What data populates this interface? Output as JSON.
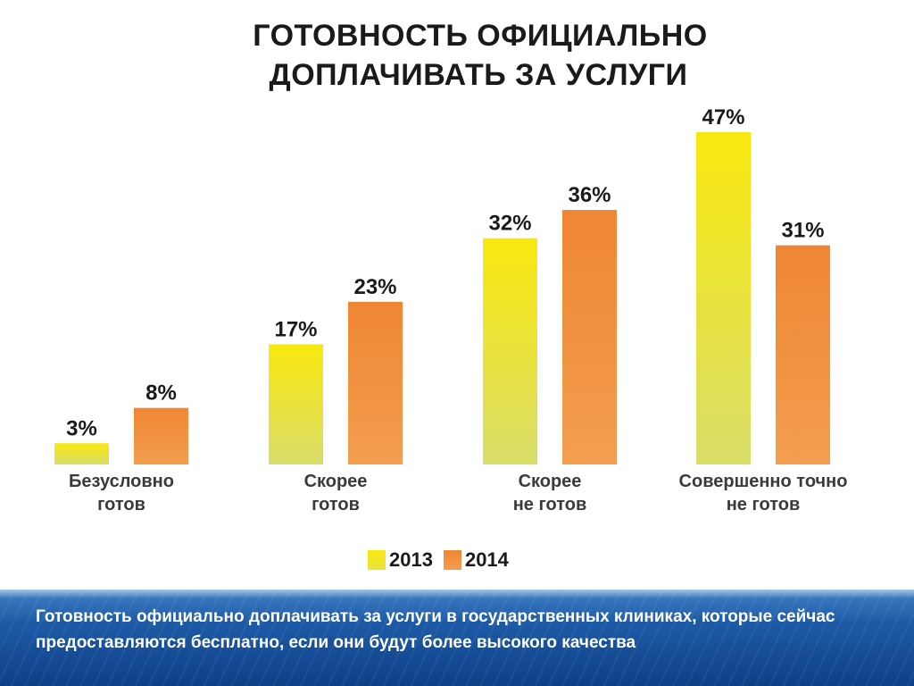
{
  "chart_data": {
    "type": "bar",
    "title_lines": [
      "ГОТОВНОСТЬ ОФИЦИАЛЬНО",
      "ДОПЛАЧИВАТЬ ЗА УСЛУГИ"
    ],
    "categories": [
      [
        "Безусловно",
        "готов"
      ],
      [
        "Скорее",
        "готов"
      ],
      [
        "Скорее",
        "не готов"
      ],
      [
        "Совершенно точно",
        "не готов"
      ]
    ],
    "series": [
      {
        "name": "2013",
        "values": [
          3,
          17,
          32,
          47
        ],
        "labels": [
          "3%",
          "17%",
          "32%",
          "47%"
        ],
        "color": "#f7e11a"
      },
      {
        "name": "2014",
        "values": [
          8,
          23,
          36,
          31
        ],
        "labels": [
          "8%",
          "23%",
          "36%",
          "31%"
        ],
        "color": "#f0893a"
      }
    ],
    "ylim": [
      0,
      47
    ],
    "grid": false,
    "legend_position": "bottom-center"
  },
  "colors": {
    "bar_2013_top": "#f7e11a",
    "bar_2013_bottom": "#d7dc5e",
    "bar_2014_top": "#f0893a",
    "bar_2014_bottom": "#f39c4c",
    "caption_band": "#1d5aa6"
  },
  "caption": "Готовность официально доплачивать за услуги в государственных клиниках, которые сейчас предоставляются бесплатно, если они будут более высокого качества"
}
